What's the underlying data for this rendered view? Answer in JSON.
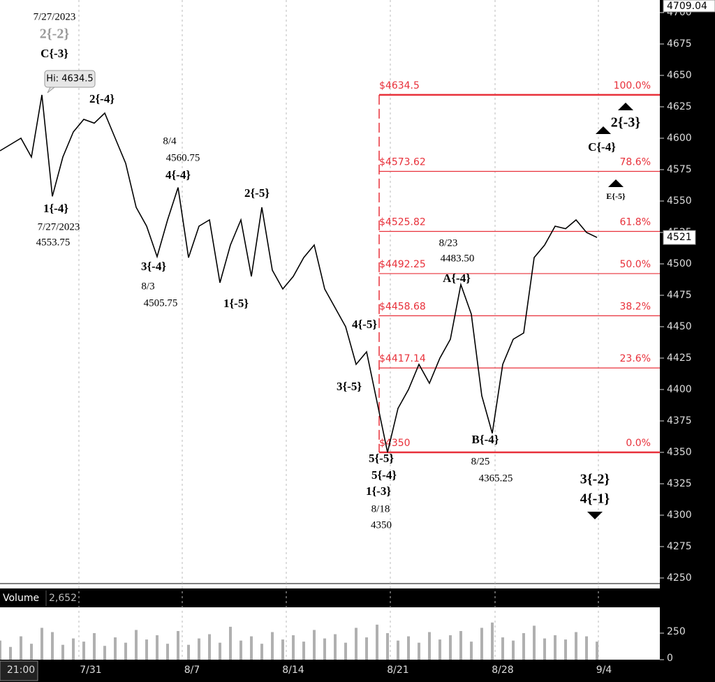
{
  "chart_data": {
    "type": "line",
    "price_series": {
      "name": "Price",
      "color": "#000000",
      "values": [
        4590,
        4595,
        4600,
        4585,
        4634.5,
        4553.75,
        4585,
        4605,
        4615,
        4612,
        4620,
        4600,
        4580,
        4545,
        4530,
        4505.75,
        4535,
        4560.75,
        4505,
        4530,
        4535,
        4485,
        4515,
        4535,
        4490,
        4545,
        4495,
        4480,
        4490,
        4505,
        4515,
        4480,
        4465,
        4450,
        4420,
        4430,
        4390,
        4350,
        4385,
        4400,
        4420,
        4405,
        4425,
        4440,
        4483.5,
        4460,
        4395,
        4365.25,
        4420,
        4440,
        4445,
        4505,
        4515,
        4530,
        4528,
        4535,
        4525,
        4521
      ]
    },
    "ylim": [
      4250,
      4709.04
    ],
    "yticks": [
      4250,
      4275,
      4300,
      4325,
      4350,
      4375,
      4400,
      4425,
      4450,
      4475,
      4500,
      4525,
      4550,
      4575,
      4600,
      4625,
      4650,
      4675,
      4700
    ],
    "axis_max_label": 4709.04,
    "last_price": 4521,
    "x_labels": [
      "21:00",
      "7/31",
      "8/7",
      "8/14",
      "8/21",
      "8/28",
      "9/4"
    ],
    "fib_levels": [
      {
        "value": 4634.5,
        "price_label": "$4634.5",
        "pct_label": "100.0%"
      },
      {
        "value": 4573.62,
        "price_label": "$4573.62",
        "pct_label": "78.6%"
      },
      {
        "value": 4525.82,
        "price_label": "$4525.82",
        "pct_label": "61.8%"
      },
      {
        "value": 4492.25,
        "price_label": "$4492.25",
        "pct_label": "50.0%"
      },
      {
        "value": 4458.68,
        "price_label": "$4458.68",
        "pct_label": "38.2%"
      },
      {
        "value": 4417.14,
        "price_label": "$4417.14",
        "pct_label": "23.6%"
      },
      {
        "value": 4350,
        "price_label": "$4350",
        "pct_label": "0.0%"
      }
    ],
    "fib_color": "#e8303a",
    "annotations": [
      "7/27/2023",
      "2{-2}",
      "C{-3}",
      "Hi: 4634.5",
      "2{-4}",
      "8/4",
      "4560.75",
      "4{-4}",
      "2{-5}",
      "1{-4}",
      "7/27/2023",
      "4553.75",
      "3{-4}",
      "8/3",
      "4505.75",
      "1{-5}",
      "8/23",
      "4483.50",
      "A{-4}",
      "4{-5}",
      "3{-5}",
      "5{-5}",
      "5{-4}",
      "1{-3}",
      "8/18",
      "4350",
      "B{-4}",
      "8/25",
      "4365.25",
      "2{-3}",
      "C{-4}",
      "E{-5}",
      "3{-2}",
      "4{-1}"
    ],
    "volume_title": "Volume",
    "volume_last": "2,652",
    "volume": {
      "color": "#b0b0b0",
      "values": [
        180,
        120,
        220,
        150,
        300,
        260,
        140,
        200,
        170,
        250,
        130,
        210,
        160,
        280,
        190,
        230,
        150,
        270,
        140,
        200,
        240,
        160,
        310,
        180,
        220,
        150,
        260,
        190,
        230,
        170,
        280,
        200,
        240,
        160,
        300,
        210,
        330,
        250,
        180,
        220,
        160,
        260,
        190,
        230,
        270,
        170,
        300,
        350,
        210,
        180,
        250,
        320,
        200,
        230,
        190,
        260,
        220,
        170
      ]
    },
    "volume_ylim": [
      0,
      500
    ],
    "volume_yticks": [
      0,
      250
    ]
  }
}
